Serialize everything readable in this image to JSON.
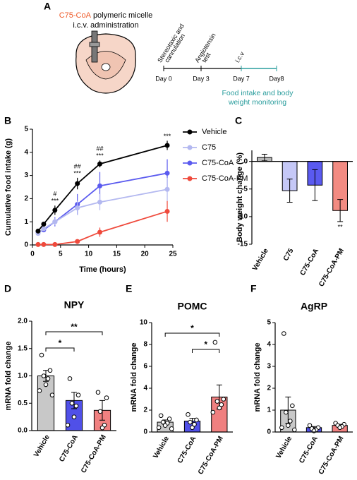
{
  "panel_a": {
    "letter": "A",
    "title_highlight": "C75-CoA",
    "title_rest": "polymeric micelle",
    "subtitle": "i.c.v. administration",
    "timeline": [
      {
        "day": "Day 0",
        "event": [
          "Stereotaxic and",
          "cannulation"
        ]
      },
      {
        "day": "Day 3",
        "event": [
          "Angiotensin",
          "test"
        ]
      },
      {
        "day": "Day 7",
        "event": [
          "i.c.v"
        ]
      },
      {
        "day": "Day8"
      }
    ],
    "note": [
      "Food intake and body",
      "weight monitoring"
    ]
  },
  "chart_data": [
    {
      "panel": "B",
      "type": "line",
      "xlabel": "Time (hours)",
      "ylabel": "Cumulative food intake (g)",
      "x": [
        1,
        2,
        4,
        8,
        12,
        24
      ],
      "series": [
        {
          "name": "Vehicle",
          "color": "#000000",
          "values": [
            0.6,
            0.9,
            1.5,
            2.65,
            3.5,
            4.3
          ],
          "errors": [
            0.05,
            0.07,
            0.2,
            0.25,
            0.15,
            0.2
          ]
        },
        {
          "name": "C75",
          "color": "#b3b8f0",
          "values": [
            0.5,
            0.7,
            1.0,
            1.6,
            1.85,
            2.4
          ],
          "errors": [
            0.05,
            0.1,
            0.15,
            0.3,
            0.35,
            0.5
          ]
        },
        {
          "name": "C75-CoA",
          "color": "#5b5bef",
          "values": [
            0.55,
            0.65,
            1.0,
            1.75,
            2.55,
            3.1
          ],
          "errors": [
            0.08,
            0.1,
            0.2,
            0.45,
            0.6,
            0.6
          ]
        },
        {
          "name": "C75-CoA-PM",
          "color": "#ef4a3c",
          "values": [
            0.02,
            0.02,
            0.02,
            0.15,
            0.55,
            1.45
          ],
          "errors": [
            0.02,
            0.02,
            0.02,
            0.05,
            0.2,
            0.45
          ]
        }
      ],
      "xlim": [
        0,
        25
      ],
      "xticks": [
        0,
        5,
        10,
        15,
        20,
        25
      ],
      "ylim": [
        0,
        5
      ],
      "yticks": [
        0,
        1,
        2,
        3,
        4,
        5
      ],
      "annotations": [
        {
          "x": 4,
          "text": [
            "#",
            "***"
          ]
        },
        {
          "x": 8,
          "text": [
            "##",
            "***"
          ]
        },
        {
          "x": 12,
          "text": [
            "##",
            "***"
          ]
        },
        {
          "x": 24,
          "text": [
            "***"
          ]
        }
      ],
      "legend": "right"
    },
    {
      "panel": "C",
      "type": "bar",
      "ylabel": "Body weight change (%)",
      "categories": [
        "Vehicle",
        "C75",
        "C75-CoA",
        "C75-CoA-PM"
      ],
      "values": [
        0.7,
        -5.3,
        -4.3,
        -8.9
      ],
      "errors": [
        0.6,
        2.1,
        2.8,
        2.0
      ],
      "colors": [
        "#b8b8b8",
        "#c5c8f7",
        "#5a5af0",
        "#f28b82"
      ],
      "ylim": [
        -15,
        2
      ],
      "yticks": [
        0,
        -5,
        -10,
        -15
      ],
      "annotations": [
        {
          "category": "C75-CoA-PM",
          "text": "**"
        }
      ]
    },
    {
      "panel": "D",
      "type": "bar",
      "title": "NPY",
      "ylabel": "mRNA fold change",
      "categories": [
        "Vehicle",
        "C75-CoA",
        "C75-CoA-PM"
      ],
      "values": [
        1.0,
        0.55,
        0.37
      ],
      "errors": [
        0.1,
        0.15,
        0.18
      ],
      "colors": [
        "#c8c8c8",
        "#5050e8",
        "#f08080"
      ],
      "points": [
        [
          1.38,
          1.1,
          1.0,
          0.95,
          0.84,
          0.73,
          0.65
        ],
        [
          0.95,
          0.65,
          0.5,
          0.45,
          0.25,
          0.1
        ],
        [
          0.7,
          0.6,
          0.35,
          0.1,
          0.05
        ]
      ],
      "ylim": [
        0,
        2
      ],
      "yticks": [
        {
          "value": 0,
          "label": "0.0"
        },
        0.5,
        {
          "value": 1,
          "label": "1.0"
        },
        1.5,
        {
          "value": 2,
          "label": "2.0"
        }
      ],
      "comparisons": [
        {
          "between": [
            "Vehicle",
            "C75-CoA"
          ],
          "label": "*"
        },
        {
          "between": [
            "Vehicle",
            "C75-CoA-PM"
          ],
          "label": "**"
        }
      ]
    },
    {
      "panel": "E",
      "type": "bar",
      "title": "POMC",
      "ylabel": "mRNA fold change",
      "categories": [
        "Vehicle",
        "C75-CoA",
        "C75-CoA-PM"
      ],
      "values": [
        0.9,
        1.0,
        3.2
      ],
      "errors": [
        0.2,
        0.25,
        1.1
      ],
      "colors": [
        "#c8c8c8",
        "#5050e8",
        "#f08080"
      ],
      "points": [
        [
          1.5,
          1.2,
          0.9,
          0.8,
          0.6,
          0.4,
          0.3
        ],
        [
          1.6,
          1.1,
          0.9,
          0.7,
          0.4
        ],
        [
          8.2,
          3.0,
          2.8,
          2.5,
          2.2,
          1.8
        ]
      ],
      "ylim": [
        0,
        10
      ],
      "yticks": [
        0,
        2,
        4,
        6,
        8,
        10
      ],
      "comparisons": [
        {
          "between": [
            "C75-CoA",
            "C75-CoA-PM"
          ],
          "label": "*"
        },
        {
          "between": [
            "Vehicle",
            "C75-CoA-PM"
          ],
          "label": "*"
        }
      ]
    },
    {
      "panel": "F",
      "type": "bar",
      "title": "AgRP",
      "ylabel": "mRNA fold change",
      "categories": [
        "Vehicle",
        "C75-CoA",
        "C75-CoA-PM"
      ],
      "values": [
        1.0,
        0.2,
        0.3
      ],
      "errors": [
        0.6,
        0.05,
        0.05
      ],
      "colors": [
        "#c8c8c8",
        "#5050e8",
        "#f08080"
      ],
      "points": [
        [
          4.5,
          1.2,
          0.9,
          0.5,
          0.3,
          0.2,
          0.1
        ],
        [
          0.3,
          0.2,
          0.15,
          0.1,
          0.05
        ],
        [
          0.4,
          0.35,
          0.3,
          0.25,
          0.2
        ]
      ],
      "ylim": [
        0,
        5
      ],
      "yticks": [
        0,
        1,
        2,
        3,
        4,
        5
      ]
    }
  ]
}
